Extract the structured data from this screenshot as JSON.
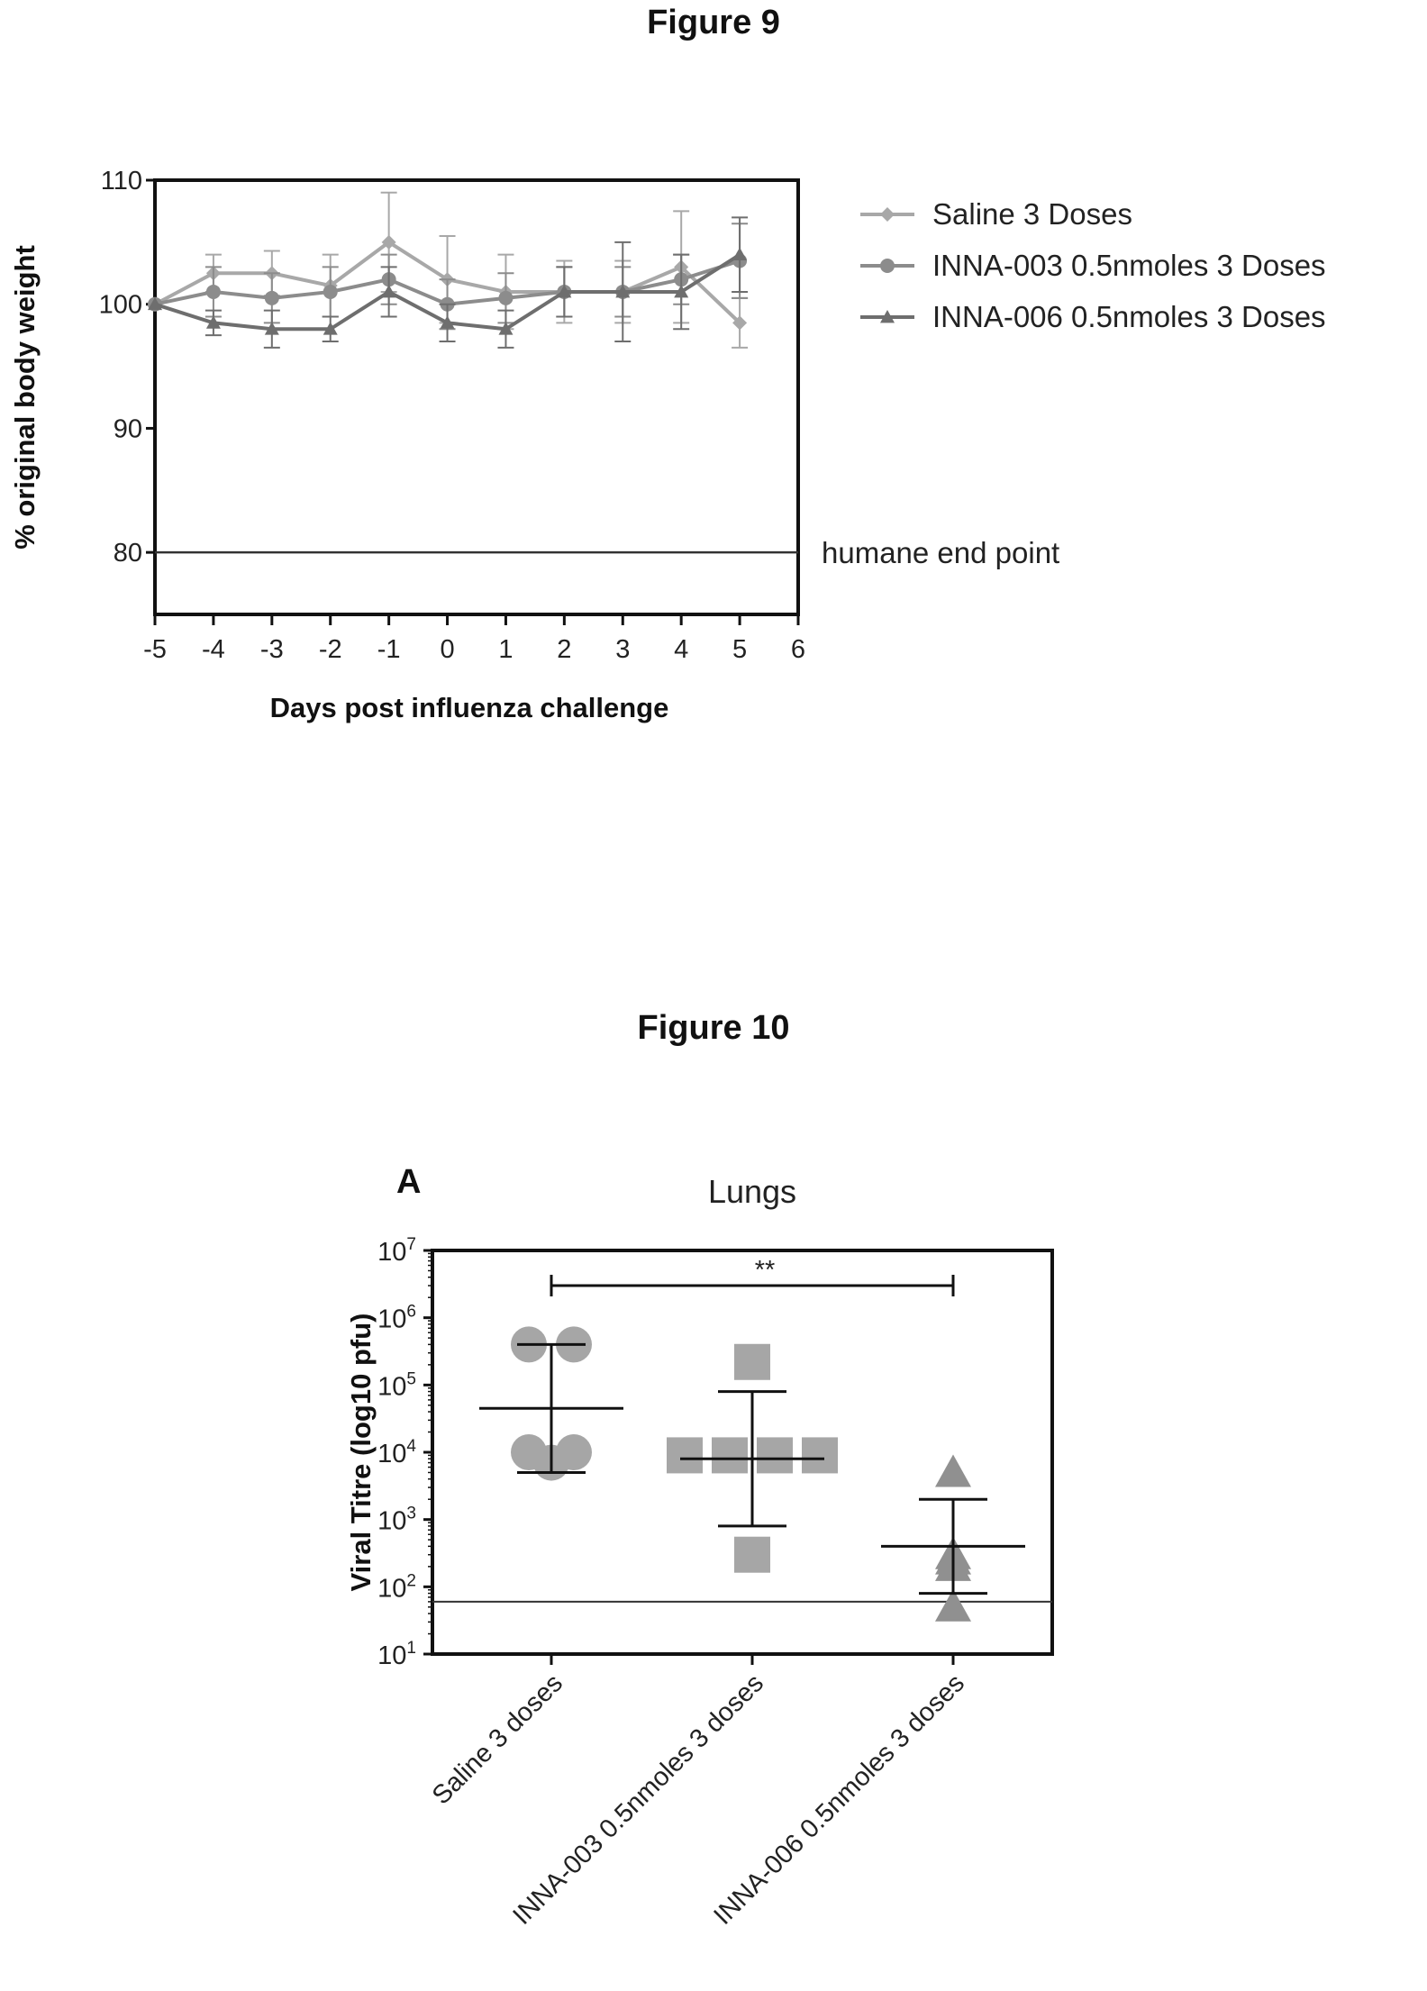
{
  "figures": {
    "fig9_title": "Figure 9",
    "fig10_title": "Figure 10"
  },
  "colors": {
    "axis": "#111111",
    "saline": "#a8a8a8",
    "inna003": "#8c8c8c",
    "inna006": "#6e6e6e",
    "ref_line": "#333333",
    "errbar": "#111111"
  },
  "chart_data": [
    {
      "type": "line",
      "ylabel": "% original body weight",
      "xlabel": "Days post influenza challenge",
      "xlim": [
        -5,
        6
      ],
      "ylim": [
        75,
        110
      ],
      "x_ticks": [
        -5,
        -4,
        -3,
        -2,
        -1,
        0,
        1,
        2,
        3,
        4,
        5,
        6
      ],
      "y_ticks": [
        80,
        90,
        100,
        110
      ],
      "grid": false,
      "legend_position": "right",
      "x": [
        -5,
        -4,
        -3,
        -2,
        -1,
        0,
        1,
        2,
        3,
        4,
        5
      ],
      "series": [
        {
          "name": "Saline 3 Doses",
          "marker": "diamond",
          "values": [
            100,
            102.5,
            102.5,
            101.5,
            105,
            102,
            101,
            101,
            101,
            103,
            98.5
          ],
          "errors": [
            0,
            1.5,
            1.8,
            2.5,
            4,
            3.5,
            3,
            2.5,
            2.5,
            4.5,
            2
          ]
        },
        {
          "name": "INNA-003 0.5nmoles 3 Doses",
          "marker": "circle",
          "values": [
            100,
            101,
            100.5,
            101,
            102,
            100,
            100.5,
            101,
            101,
            102,
            103.5
          ],
          "errors": [
            0,
            2,
            2,
            2,
            2,
            2,
            2,
            2,
            2,
            2,
            3
          ]
        },
        {
          "name": "INNA-006 0.5nmoles 3 Doses",
          "marker": "triangle",
          "values": [
            100,
            98.5,
            98,
            98,
            101,
            98.5,
            98,
            101,
            101,
            101,
            104
          ],
          "errors": [
            0,
            1,
            1.5,
            1,
            2,
            1.5,
            1.5,
            2,
            4,
            3,
            3
          ]
        }
      ],
      "reference_line": {
        "y": 80,
        "label": "humane end point"
      }
    },
    {
      "type": "scatter",
      "panel_label": "A",
      "title": "Lungs",
      "ylabel": "Viral Titre (log10 pfu)",
      "y_scale": "log",
      "ylim": [
        10,
        10000000
      ],
      "y_ticks": [
        {
          "value": 10,
          "base": "10",
          "exp": "1"
        },
        {
          "value": 100,
          "base": "10",
          "exp": "2"
        },
        {
          "value": 1000,
          "base": "10",
          "exp": "3"
        },
        {
          "value": 10000,
          "base": "10",
          "exp": "4"
        },
        {
          "value": 100000,
          "base": "10",
          "exp": "5"
        },
        {
          "value": 1000000,
          "base": "10",
          "exp": "6"
        },
        {
          "value": 10000000,
          "base": "10",
          "exp": "7"
        }
      ],
      "categories": [
        "Saline 3 doses",
        "INNA-003 0.5nmoles 3 doses",
        "INNA-006 0.5nmoles 3 doses"
      ],
      "groups": [
        {
          "name": "Saline 3 doses",
          "marker": "circle",
          "points": [
            400000,
            400000,
            10000,
            10000,
            7000
          ],
          "mean": 45000,
          "err_low": 5000,
          "err_high": 400000
        },
        {
          "name": "INNA-003 0.5nmoles 3 doses",
          "marker": "square",
          "points": [
            220000,
            9000,
            9000,
            9000,
            9000,
            300
          ],
          "mean": 8000,
          "err_low": 800,
          "err_high": 80000
        },
        {
          "name": "INNA-006 0.5nmoles 3 doses",
          "marker": "triangle",
          "points": [
            5000,
            300,
            250,
            200,
            50
          ],
          "mean": 400,
          "err_low": 80,
          "err_high": 2000
        }
      ],
      "limit_of_detection": 60,
      "significance": {
        "from": 0,
        "to": 2,
        "label": "**"
      }
    }
  ]
}
